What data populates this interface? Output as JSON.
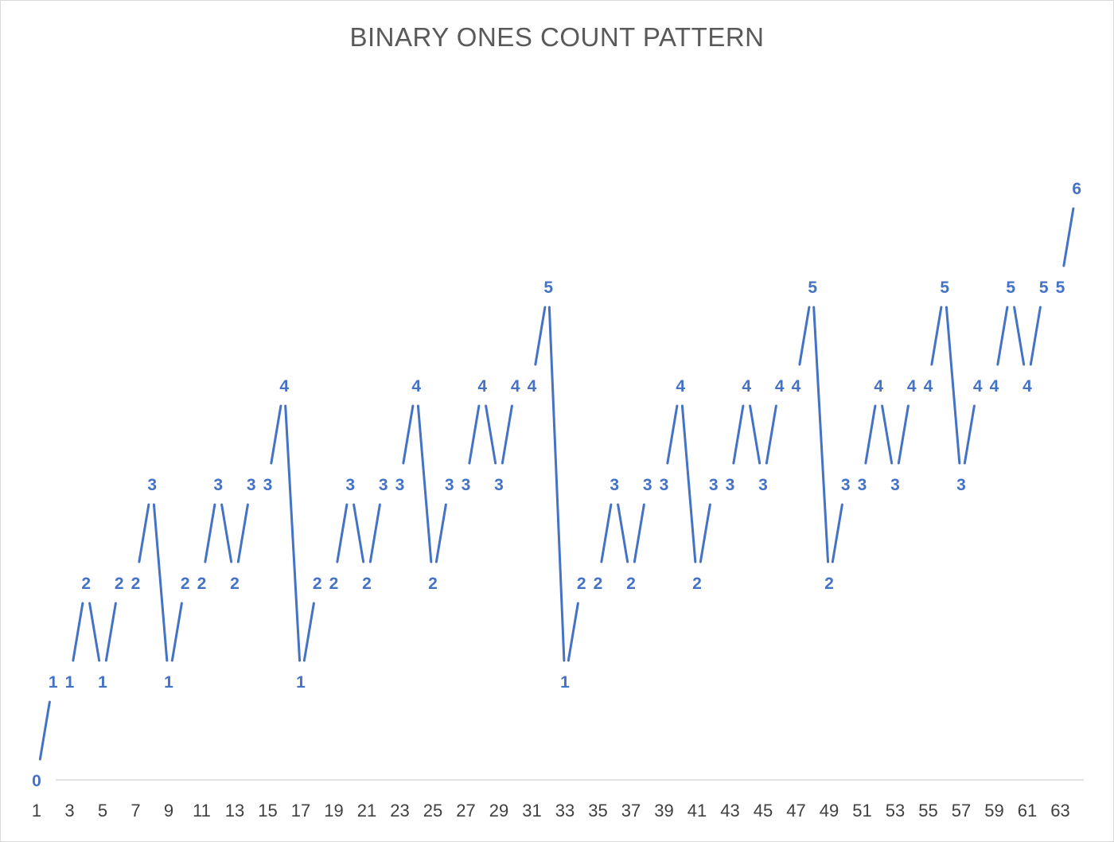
{
  "chart_data": {
    "type": "line",
    "title": "BINARY ONES COUNT PATTERN",
    "xlabel": "",
    "ylabel": "",
    "x": [
      1,
      2,
      3,
      4,
      5,
      6,
      7,
      8,
      9,
      10,
      11,
      12,
      13,
      14,
      15,
      16,
      17,
      18,
      19,
      20,
      21,
      22,
      23,
      24,
      25,
      26,
      27,
      28,
      29,
      30,
      31,
      32,
      33,
      34,
      35,
      36,
      37,
      38,
      39,
      40,
      41,
      42,
      43,
      44,
      45,
      46,
      47,
      48,
      49,
      50,
      51,
      52,
      53,
      54,
      55,
      56,
      57,
      58,
      59,
      60,
      61,
      62,
      63,
      64
    ],
    "x_tick_labels": [
      "1",
      "3",
      "5",
      "7",
      "9",
      "11",
      "13",
      "15",
      "17",
      "19",
      "21",
      "23",
      "25",
      "27",
      "29",
      "31",
      "33",
      "35",
      "37",
      "39",
      "41",
      "43",
      "45",
      "47",
      "49",
      "51",
      "53",
      "55",
      "57",
      "59",
      "61",
      "63"
    ],
    "series": [
      {
        "values": [
          0,
          1,
          1,
          2,
          1,
          2,
          2,
          3,
          1,
          2,
          2,
          3,
          2,
          3,
          3,
          4,
          1,
          2,
          2,
          3,
          2,
          3,
          3,
          4,
          2,
          3,
          3,
          4,
          3,
          4,
          4,
          5,
          1,
          2,
          2,
          3,
          2,
          3,
          3,
          4,
          2,
          3,
          3,
          4,
          3,
          4,
          4,
          5,
          2,
          3,
          3,
          4,
          3,
          4,
          4,
          5,
          3,
          4,
          4,
          5,
          4,
          5,
          5,
          6
        ],
        "data_labels": true
      }
    ],
    "ylim": [
      0,
      6
    ],
    "grid": false,
    "legend": "none",
    "colors": {
      "line": "#4472c4",
      "axis": "#d9d9d9",
      "tick_text": "#404040",
      "title": "#595959"
    }
  }
}
